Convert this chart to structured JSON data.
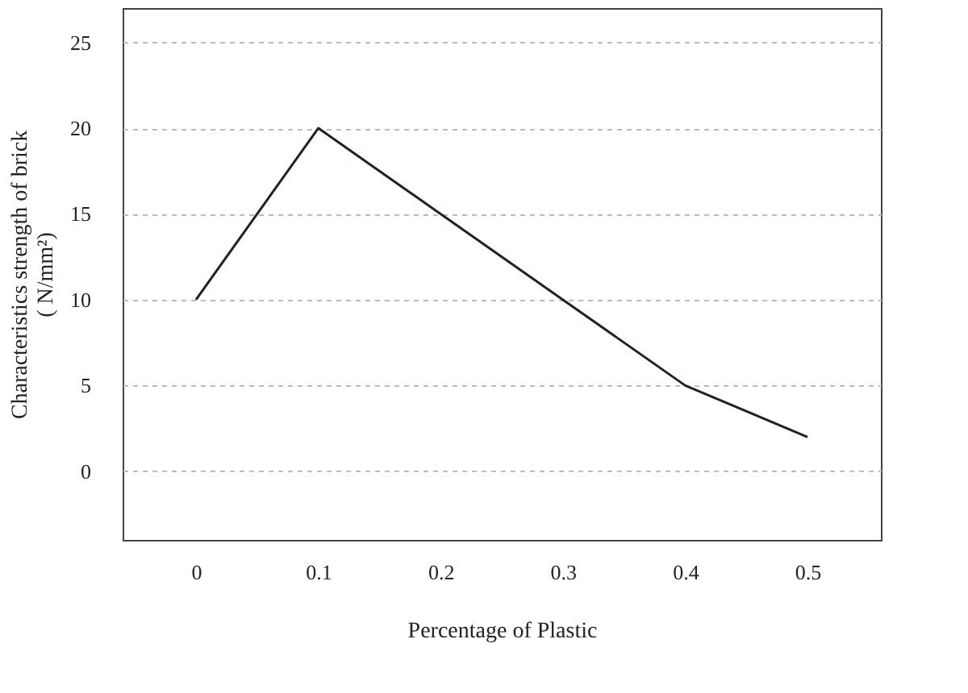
{
  "chart_data": {
    "type": "line",
    "xlabel": "Percentage of Plastic",
    "ylabel": "Characteristics strength of brick\n( N/mm²)",
    "categories": [
      "0",
      "0.1",
      "0.2",
      "0.3",
      "0.4",
      "0.5"
    ],
    "series": [
      {
        "color": "#222222",
        "values": [
          10,
          20,
          15,
          10,
          5,
          2
        ]
      }
    ],
    "ylim": [
      -4,
      27
    ],
    "yticks": [
      0,
      5,
      10,
      15,
      20,
      25
    ],
    "grid": "y",
    "marker": "none",
    "line_style": "solid"
  }
}
